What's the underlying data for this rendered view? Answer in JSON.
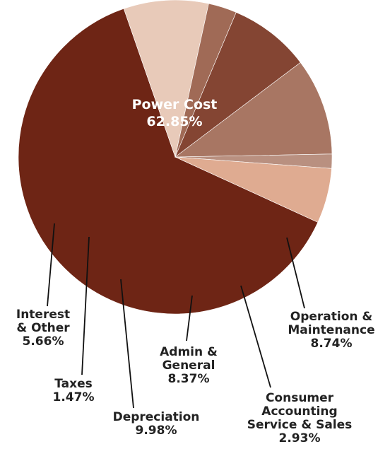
{
  "chart_data": {
    "type": "pie",
    "title": "",
    "slices": [
      {
        "label": [
          "Power Cost"
        ],
        "pct_text": "62.85%",
        "value": 62.85,
        "color": "#6e2515"
      },
      {
        "label": [
          "Operation &",
          "Maintenance"
        ],
        "pct_text": "8.74%",
        "value": 8.74,
        "color": "#e8cab9"
      },
      {
        "label": [
          "Consumer",
          "Accounting",
          "Service & Sales"
        ],
        "pct_text": "2.93%",
        "value": 2.93,
        "color": "#a06a56"
      },
      {
        "label": [
          "Admin &",
          "General"
        ],
        "pct_text": "8.37%",
        "value": 8.37,
        "color": "#844533"
      },
      {
        "label": [
          "Depreciation"
        ],
        "pct_text": "9.98%",
        "value": 9.98,
        "color": "#a87663"
      },
      {
        "label": [
          "Taxes"
        ],
        "pct_text": "1.47%",
        "value": 1.47,
        "color": "#b99080"
      },
      {
        "label": [
          "Interest",
          "& Other"
        ],
        "pct_text": "5.66%",
        "value": 5.66,
        "color": "#dfab91"
      }
    ]
  }
}
